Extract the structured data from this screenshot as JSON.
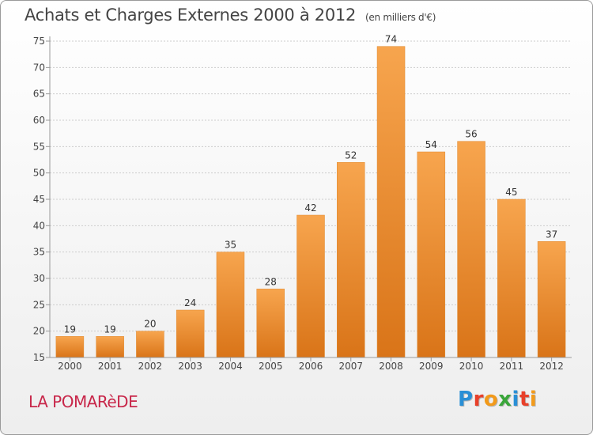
{
  "header": {
    "title": "Achats et Charges Externes 2000 à 2012",
    "unit": "(en milliers d'€)"
  },
  "footer": {
    "commune": "LA POMARèDE",
    "logo_text": "Proxiti",
    "logo_colors": [
      "#2a8fd6",
      "#e8402a",
      "#f29a1a",
      "#3aa63a",
      "#2a8fd6",
      "#e8402a",
      "#f29a1a"
    ]
  },
  "colors": {
    "bar_light": "#f7a54e",
    "bar_dark": "#d97418",
    "grid": "#cccccc",
    "axis": "#999999",
    "title": "#444444",
    "commune": "#c8274a"
  },
  "chart_data": {
    "type": "bar",
    "title": "Achats et Charges Externes 2000 à 2012",
    "xlabel": "",
    "ylabel": "",
    "categories": [
      "2000",
      "2001",
      "2002",
      "2003",
      "2004",
      "2005",
      "2006",
      "2007",
      "2008",
      "2009",
      "2010",
      "2011",
      "2012"
    ],
    "values": [
      19,
      19,
      20,
      24,
      35,
      28,
      42,
      52,
      74,
      54,
      56,
      45,
      37
    ],
    "ylim": [
      15,
      75
    ],
    "yticks": [
      15,
      20,
      25,
      30,
      35,
      40,
      45,
      50,
      55,
      60,
      65,
      70,
      75
    ],
    "grid": true,
    "legend": "none"
  }
}
